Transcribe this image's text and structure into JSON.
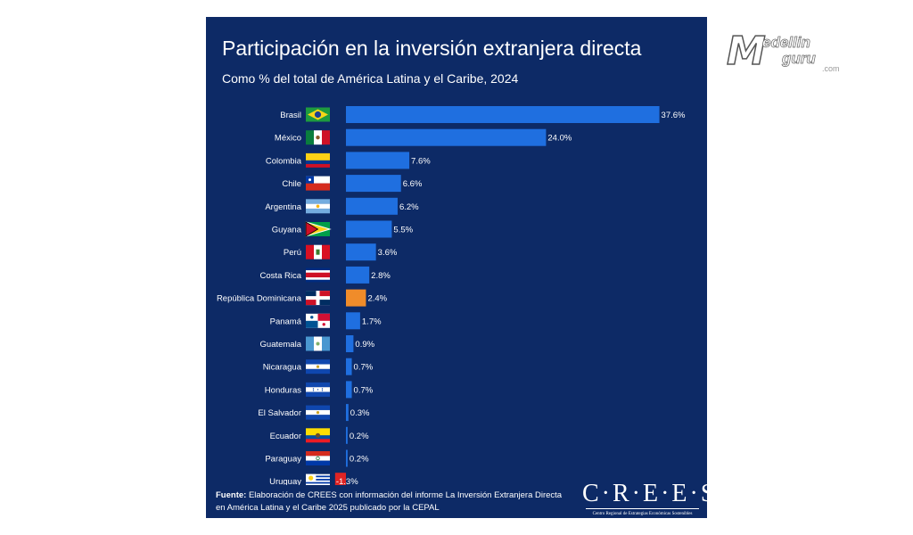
{
  "chart_data": {
    "type": "bar",
    "orientation": "horizontal",
    "title": "Participación en la inversión extranjera directa",
    "subtitle": "Como % del total de América Latina y el Caribe, 2024",
    "categories": [
      "Brasil",
      "México",
      "Colombia",
      "Chile",
      "Argentina",
      "Guyana",
      "Perú",
      "Costa Rica",
      "República Dominicana",
      "Panamá",
      "Guatemala",
      "Nicaragua",
      "Honduras",
      "El Salvador",
      "Ecuador",
      "Paraguay",
      "Uruguay"
    ],
    "values": [
      37.6,
      24.0,
      7.6,
      6.6,
      6.2,
      5.5,
      3.6,
      2.8,
      2.4,
      1.7,
      0.9,
      0.7,
      0.7,
      0.3,
      0.2,
      0.2,
      -1.3
    ],
    "data_labels": [
      "37.6%",
      "24.0%",
      "7.6%",
      "6.6%",
      "6.2%",
      "5.5%",
      "3.6%",
      "2.8%",
      "2.4%",
      "1.7%",
      "0.9%",
      "0.7%",
      "0.7%",
      "0.3%",
      "0.2%",
      "0.2%",
      "-1.3%"
    ],
    "highlight": "República Dominicana",
    "colors": {
      "bar": "#1f6fe0",
      "highlight": "#f08c2a",
      "negative": "#e02424",
      "background": "#0d2a66"
    },
    "flag_icons": [
      "brazil-flag-icon",
      "mexico-flag-icon",
      "colombia-flag-icon",
      "chile-flag-icon",
      "argentina-flag-icon",
      "guyana-flag-icon",
      "peru-flag-icon",
      "costa-rica-flag-icon",
      "dominican-republic-flag-icon",
      "panama-flag-icon",
      "guatemala-flag-icon",
      "nicaragua-flag-icon",
      "honduras-flag-icon",
      "el-salvador-flag-icon",
      "ecuador-flag-icon",
      "paraguay-flag-icon",
      "uruguay-flag-icon"
    ],
    "grid": false,
    "legend": "none"
  },
  "source": {
    "label": "Fuente:",
    "text": " Elaboración de CREES con información del informe La Inversión Extranjera Directa en América Latina y el Caribe 2025 publicado por la CEPAL"
  },
  "logo": {
    "name": "C·R·E·E·S",
    "tagline": "Centro Regional de Estrategias Económicas Sostenibles"
  },
  "watermark": {
    "letter": "M",
    "line1": "edellin",
    "line2": "guru",
    "suffix": ".com"
  }
}
